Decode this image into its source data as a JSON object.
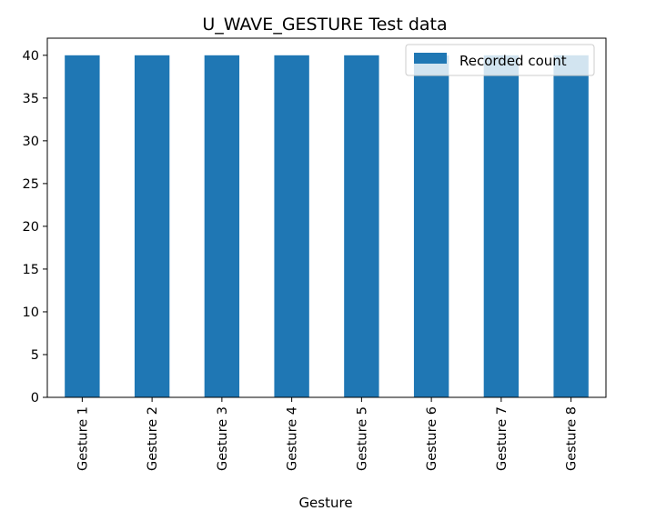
{
  "chart_data": {
    "type": "bar",
    "title": "U_WAVE_GESTURE Test data",
    "xlabel": "Gesture",
    "ylabel": "",
    "categories": [
      "Gesture 1",
      "Gesture 2",
      "Gesture 3",
      "Gesture 4",
      "Gesture 5",
      "Gesture 6",
      "Gesture 7",
      "Gesture 8"
    ],
    "series": [
      {
        "name": "Recorded count",
        "values": [
          40,
          40,
          40,
          40,
          40,
          40,
          40,
          40
        ],
        "color": "#1f77b4"
      }
    ],
    "ylim": [
      0,
      42
    ],
    "yticks": [
      0,
      5,
      10,
      15,
      20,
      25,
      30,
      35,
      40
    ],
    "grid": false,
    "legend_position": "top-right"
  }
}
